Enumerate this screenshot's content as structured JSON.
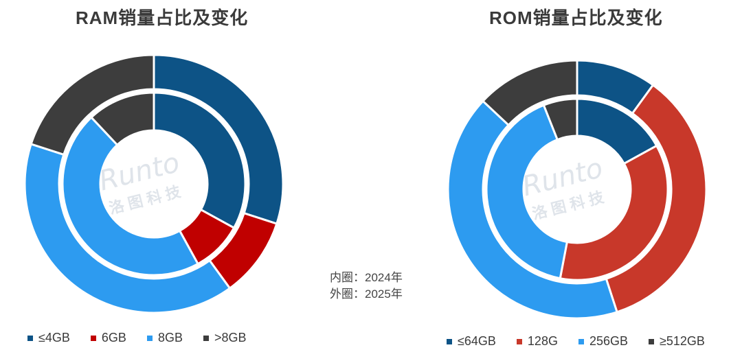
{
  "note": {
    "inner": "内圈：2024年",
    "outer": "外圈：2025年"
  },
  "watermark": {
    "text": "Runto",
    "cn": "洛 图 科 技",
    "color": "#dfe4ea"
  },
  "chart_data": [
    {
      "type": "donut",
      "title": "RAM销量占比及变化",
      "categories": [
        "≤4GB",
        "6GB",
        "8GB",
        ">8GB"
      ],
      "colors": [
        "#0d5386",
        "#c00000",
        "#2d9bf0",
        "#3d3d3d"
      ],
      "series": [
        {
          "name": "2024年",
          "ring": "inner",
          "values": [
            33,
            9,
            46,
            12
          ]
        },
        {
          "name": "2025年",
          "ring": "outer",
          "values": [
            30,
            10,
            40,
            20
          ]
        }
      ],
      "legend_position": "bottom"
    },
    {
      "type": "donut",
      "title": "ROM销量占比及变化",
      "categories": [
        "≤64GB",
        "128G",
        "256GB",
        "≥512GB"
      ],
      "colors": [
        "#0d5386",
        "#c8382a",
        "#2d9bf0",
        "#3d3d3d"
      ],
      "series": [
        {
          "name": "2024年",
          "ring": "inner",
          "values": [
            17,
            36,
            41,
            6
          ]
        },
        {
          "name": "2025年",
          "ring": "outer",
          "values": [
            10,
            35,
            42,
            13
          ]
        }
      ],
      "legend_position": "bottom"
    }
  ]
}
